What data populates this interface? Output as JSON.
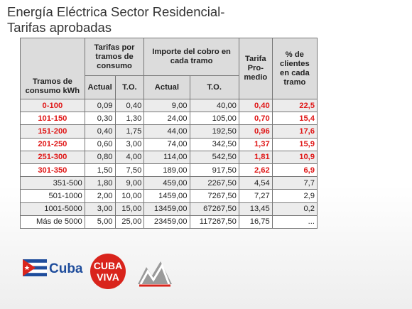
{
  "slide": {
    "title_line1": "Energía Eléctrica Sector Residencial-",
    "title_line2": "Tarifas aprobadas"
  },
  "table": {
    "headers": {
      "tramos": "Tramos de consumo kWh",
      "tarifas": "Tarifas por tramos de consumo",
      "importe": "Importe del cobro en cada tramo",
      "tarifa_promedio": "Tarifa Pro-medio",
      "porcentaje": "% de clientes en cada tramo",
      "actual": "Actual",
      "to": "T.O.",
      "actual2": "Actual",
      "to2": "T.O."
    },
    "rows": [
      {
        "tramo": "0-100",
        "tarifa_actual": "0,09",
        "tarifa_to": "0,40",
        "importe_actual": "9,00",
        "importe_to": "40,00",
        "promedio": "0,40",
        "pct": "22,5",
        "highlight": true
      },
      {
        "tramo": "101-150",
        "tarifa_actual": "0,30",
        "tarifa_to": "1,30",
        "importe_actual": "24,00",
        "importe_to": "105,00",
        "promedio": "0,70",
        "pct": "15,4",
        "highlight": true
      },
      {
        "tramo": "151-200",
        "tarifa_actual": "0,40",
        "tarifa_to": "1,75",
        "importe_actual": "44,00",
        "importe_to": "192,50",
        "promedio": "0,96",
        "pct": "17,6",
        "highlight": true
      },
      {
        "tramo": "201-250",
        "tarifa_actual": "0,60",
        "tarifa_to": "3,00",
        "importe_actual": "74,00",
        "importe_to": "342,50",
        "promedio": "1,37",
        "pct": "15,9",
        "highlight": true
      },
      {
        "tramo": "251-300",
        "tarifa_actual": "0,80",
        "tarifa_to": "4,00",
        "importe_actual": "114,00",
        "importe_to": "542,50",
        "promedio": "1,81",
        "pct": "10,9",
        "highlight": true
      },
      {
        "tramo": "301-350",
        "tarifa_actual": "1,50",
        "tarifa_to": "7,50",
        "importe_actual": "189,00",
        "importe_to": "917,50",
        "promedio": "2,62",
        "pct": "6,9",
        "highlight": true
      },
      {
        "tramo": "351-500",
        "tarifa_actual": "1,80",
        "tarifa_to": "9,00",
        "importe_actual": "459,00",
        "importe_to": "2267,50",
        "promedio": "4,54",
        "pct": "7,7",
        "highlight": false
      },
      {
        "tramo": "501-1000",
        "tarifa_actual": "2,00",
        "tarifa_to": "10,00",
        "importe_actual": "1459,00",
        "importe_to": "7267,50",
        "promedio": "7,27",
        "pct": "2,9",
        "highlight": false
      },
      {
        "tramo": "1001-5000",
        "tarifa_actual": "3,00",
        "tarifa_to": "15,00",
        "importe_actual": "13459,00",
        "importe_to": "67267,50",
        "promedio": "13,45",
        "pct": "0,2",
        "highlight": false
      },
      {
        "tramo": "Más de 5000",
        "tarifa_actual": "5,00",
        "tarifa_to": "25,00",
        "importe_actual": "23459,00",
        "importe_to": "117267,50",
        "promedio": "16,75",
        "pct": "...",
        "highlight": false
      }
    ]
  },
  "logos": {
    "cuba_text": "Cuba",
    "cuba_viva_line1": "CUBA",
    "cuba_viva_line2": "VIVA",
    "flag_colors": {
      "blue": "#1f4d9c",
      "red": "#d9241c",
      "white": "#ffffff"
    },
    "cuba_viva_color": "#d9241c",
    "third_logo_icon": "mountain-icon"
  },
  "colors": {
    "highlight_red": "#e01818",
    "header_bg": "#dcdcdc"
  }
}
